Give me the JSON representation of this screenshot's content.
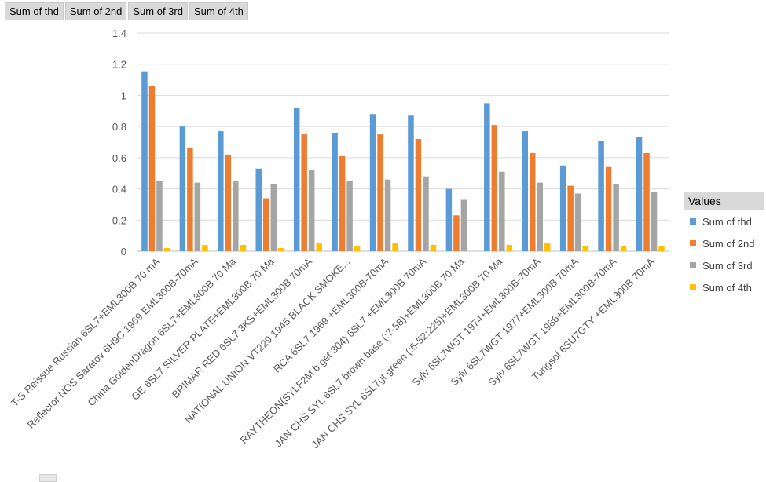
{
  "field_buttons": [
    "Sum of thd",
    "Sum of 2nd",
    "Sum of 3rd",
    "Sum of 4th"
  ],
  "legend": {
    "title": "Values",
    "items": [
      {
        "label": "Sum of thd",
        "color": "#5b9bd5"
      },
      {
        "label": "Sum of 2nd",
        "color": "#ed7d31"
      },
      {
        "label": "Sum of 3rd",
        "color": "#a5a5a5"
      },
      {
        "label": "Sum of 4th",
        "color": "#ffc000"
      }
    ]
  },
  "chart_data": {
    "type": "bar",
    "categories": [
      "T-S Reissue Russian 6SL7+EML300B 70 mA",
      "Reflector NOS Saratov 6H9C 1969 EML300B-70mA",
      "China GoldenDragon 6SL7+EML300B 70 Ma",
      "GE 6SL7 SILVER PLATE+EML300B 70 Ma",
      "BRIMAR RED 6SL7 3KS+EML300B 70mA",
      "NATIONAL UNION VT229 1945 BLACK SMOKE...",
      "RCA 6SL7 1969 +EML300B-70mA",
      "RAYTHEON(SYLF2M b.get 304) 6SL7 +EML300B 70mA",
      "JAN CHS SYL 6SL7 brown base (:7-58)+EML300B 70 Ma",
      "JAN CHS SYL 6SL7gt green (:6-52:225)+EML300B 70 Ma",
      "Sylv 6SL7WGT 1974+EML300B-70mA",
      "Sylv 6SL7WGT 1977+EML300B 70mA",
      "Sylv 6SL7WGT 1986+EML300B-70mA",
      "Tungsol 6SU7GTY +EML300B 70mA"
    ],
    "series": [
      {
        "name": "Sum of thd",
        "color": "#5b9bd5",
        "values": [
          1.15,
          0.8,
          0.77,
          0.53,
          0.92,
          0.76,
          0.88,
          0.87,
          0.4,
          0.95,
          0.77,
          0.55,
          0.71,
          0.73
        ]
      },
      {
        "name": "Sum of 2nd",
        "color": "#ed7d31",
        "values": [
          1.06,
          0.66,
          0.62,
          0.34,
          0.75,
          0.61,
          0.75,
          0.72,
          0.23,
          0.81,
          0.63,
          0.42,
          0.54,
          0.63
        ]
      },
      {
        "name": "Sum of 3rd",
        "color": "#a5a5a5",
        "values": [
          0.45,
          0.44,
          0.45,
          0.43,
          0.52,
          0.45,
          0.46,
          0.48,
          0.33,
          0.51,
          0.44,
          0.37,
          0.43,
          0.38
        ]
      },
      {
        "name": "Sum of 4th",
        "color": "#ffc000",
        "values": [
          0.02,
          0.04,
          0.04,
          0.02,
          0.05,
          0.03,
          0.05,
          0.04,
          0.0,
          0.04,
          0.05,
          0.03,
          0.03,
          0.03
        ]
      }
    ],
    "yticks": [
      "0",
      "0.2",
      "0.4",
      "0.6",
      "0.8",
      "1",
      "1.2",
      "1.4"
    ],
    "ylim": [
      0,
      1.4
    ],
    "grid": true,
    "legend_position": "right"
  }
}
